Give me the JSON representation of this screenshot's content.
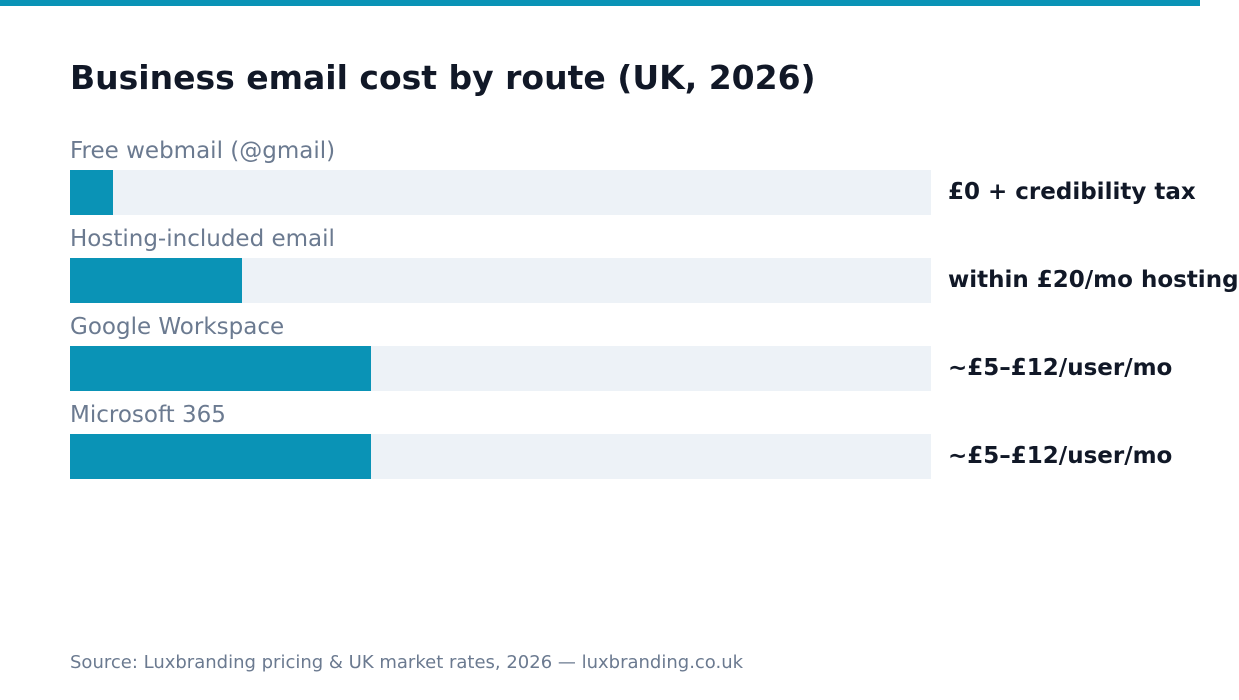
{
  "colors": {
    "accent": "#0a93b6",
    "track": "#edf2f7",
    "title": "#111827",
    "label": "#6b7a90",
    "value": "#111827",
    "source": "#6b7a90",
    "background": "#ffffff"
  },
  "chart_data": {
    "type": "bar",
    "orientation": "horizontal",
    "title": "Business email cost by route (UK, 2026)",
    "categories": [
      "Free webmail (@gmail)",
      "Hosting-included email",
      "Google Workspace",
      "Microsoft 365"
    ],
    "values": [
      0.05,
      0.2,
      0.35,
      0.35
    ],
    "value_unit": "relative cost (fraction of full bar)",
    "value_labels": [
      "£0 + credibility tax",
      "within £20/mo hosting",
      "~£5–£12/user/mo",
      "~£5–£12/user/mo"
    ],
    "xlim": [
      0,
      1
    ],
    "grid": false,
    "legend": "none"
  },
  "source": "Source: Luxbranding pricing & UK market rates, 2026 — luxbranding.co.uk"
}
